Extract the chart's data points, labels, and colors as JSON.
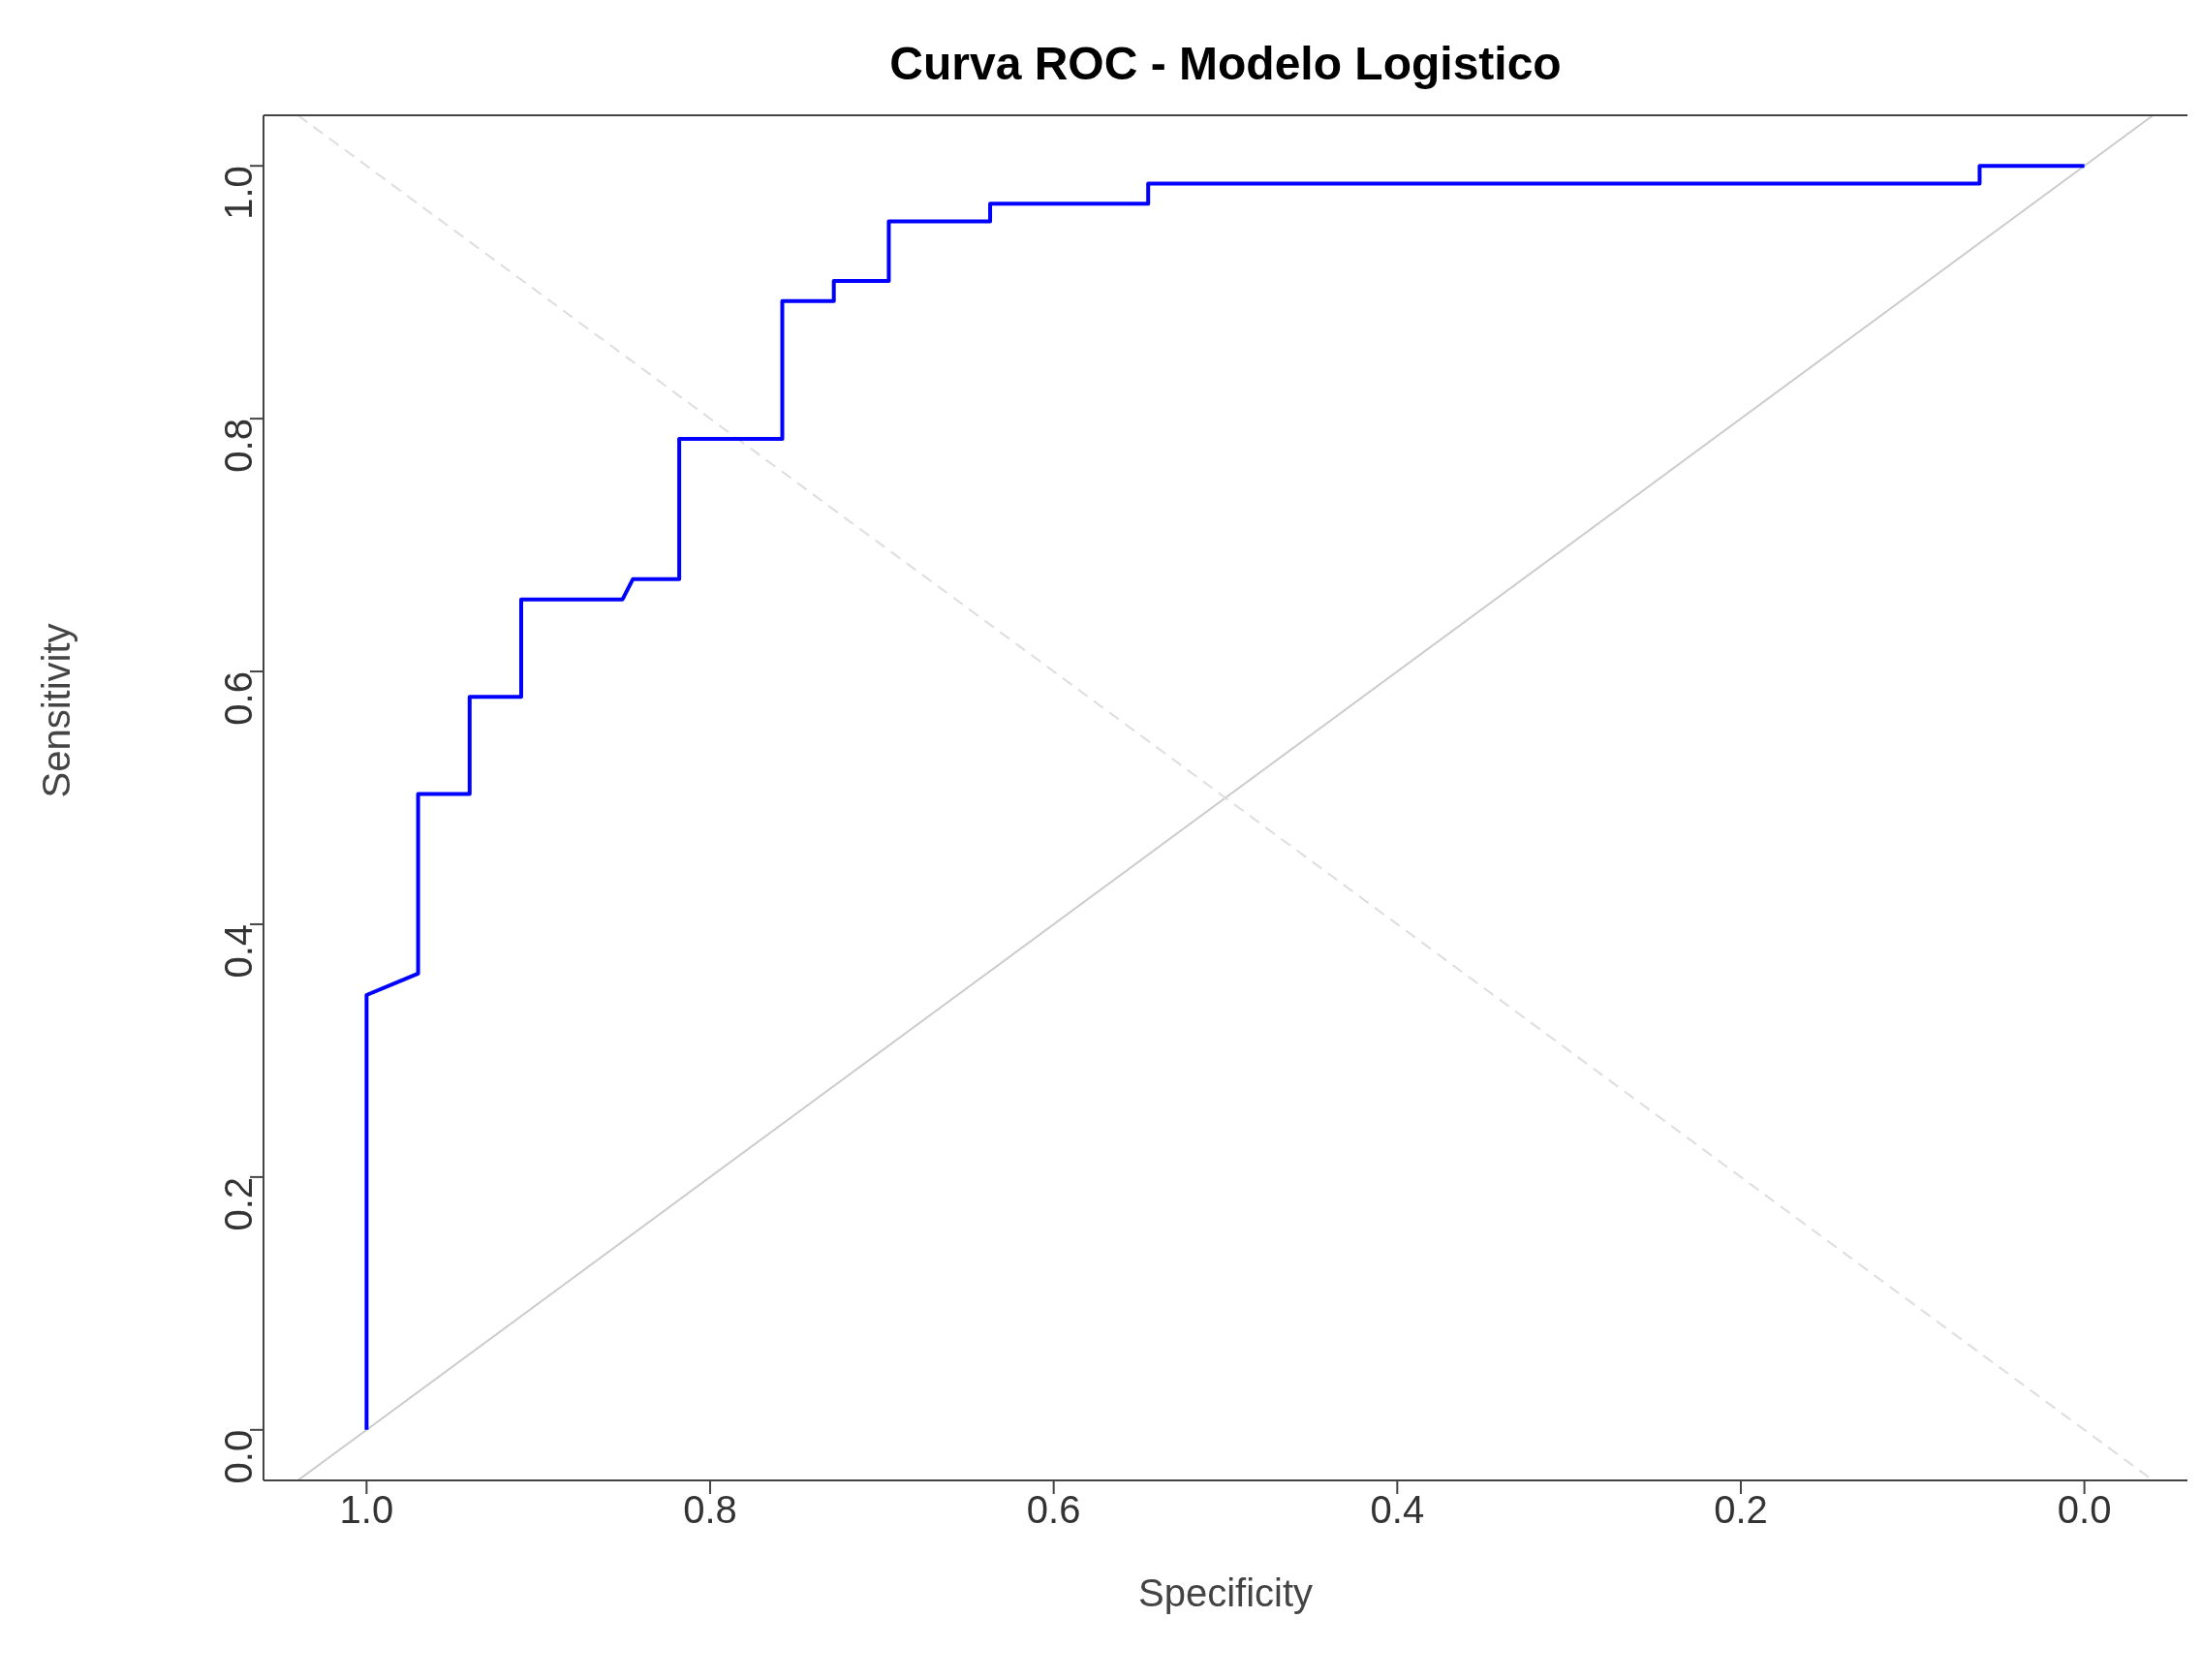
{
  "chart_data": {
    "type": "line",
    "title": "Curva ROC - Modelo Logistico",
    "xlabel": "Specificity",
    "ylabel": "Sensitivity",
    "xlim": [
      1.06,
      -0.06
    ],
    "ylim": [
      -0.04,
      1.04
    ],
    "xticks": [
      {
        "value": 1,
        "label": "1.0"
      },
      {
        "value": 0.8,
        "label": "0.8"
      },
      {
        "value": 0.6,
        "label": "0.6"
      },
      {
        "value": 0.4,
        "label": "0.4"
      },
      {
        "value": 0.2,
        "label": "0.2"
      },
      {
        "value": 0,
        "label": "0.0"
      }
    ],
    "yticks": [
      {
        "value": 0,
        "label": "0.0"
      },
      {
        "value": 0.2,
        "label": "0.2"
      },
      {
        "value": 0.4,
        "label": "0.4"
      },
      {
        "value": 0.6,
        "label": "0.6"
      },
      {
        "value": 0.8,
        "label": "0.8"
      },
      {
        "value": 1,
        "label": "1.0"
      }
    ],
    "marker": "none",
    "series": [
      {
        "color": "#cccccc",
        "line_style": "solid",
        "x": [
          1.04,
          -0.04
        ],
        "values": [
          -0.04,
          1.04
        ]
      },
      {
        "color": "#dddddd",
        "line_style": "dashed",
        "x": [
          1.04,
          -0.04
        ],
        "values": [
          1.04,
          -0.04
        ]
      },
      {
        "color": "#0000ff",
        "line_style": "solid",
        "x": [
          1,
          1,
          0.97,
          0.97,
          0.94,
          0.94,
          0.91,
          0.91,
          0.851,
          0.845,
          0.818,
          0.818,
          0.758,
          0.758,
          0.728,
          0.728,
          0.696,
          0.696,
          0.637,
          0.637,
          0.545,
          0.545,
          0.061,
          0.061,
          0
        ],
        "values": [
          0,
          0.344,
          0.361,
          0.503,
          0.503,
          0.58,
          0.58,
          0.657,
          0.657,
          0.673,
          0.673,
          0.784,
          0.784,
          0.893,
          0.893,
          0.909,
          0.909,
          0.956,
          0.956,
          0.97,
          0.97,
          0.986,
          0.986,
          1,
          1
        ]
      }
    ]
  }
}
